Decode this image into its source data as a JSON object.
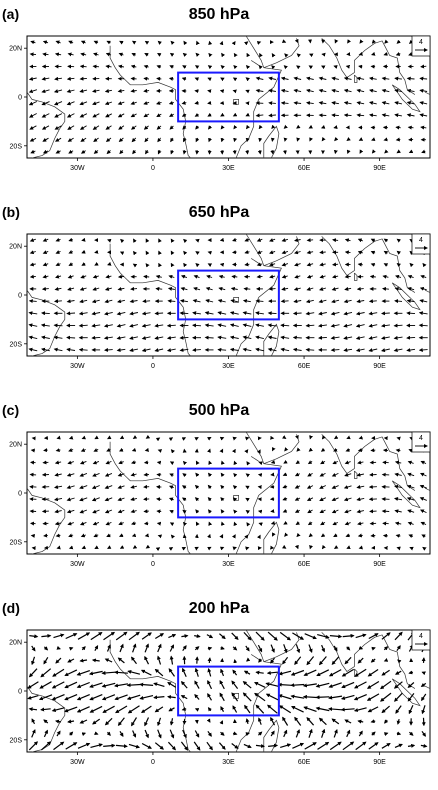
{
  "panels": [
    {
      "letter": "(a)",
      "title": "850 hPa",
      "scale": "4",
      "regime": "low"
    },
    {
      "letter": "(b)",
      "title": "650 hPa",
      "scale": "4",
      "regime": "mid"
    },
    {
      "letter": "(c)",
      "title": "500 hPa",
      "scale": "4",
      "regime": "mid2"
    },
    {
      "letter": "(d)",
      "title": "200 hPa",
      "scale": "4",
      "regime": "upper"
    }
  ],
  "axes": {
    "lon_ticks": [
      "30W",
      "0",
      "30E",
      "60E",
      "90E"
    ],
    "lat_ticks": [
      "20N",
      "0",
      "20S"
    ],
    "lon_range": [
      -50,
      110
    ],
    "lat_range": [
      -25,
      25
    ]
  },
  "box": {
    "lon": [
      10,
      50
    ],
    "lat": [
      -10,
      10
    ],
    "color": "#1a1aff"
  },
  "colors": {
    "arrow": "#000000",
    "coast": "#333333",
    "frame": "#000000"
  }
}
